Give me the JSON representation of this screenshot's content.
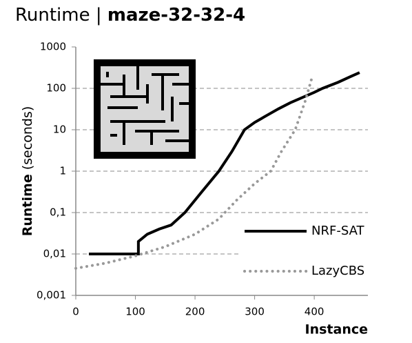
{
  "chart_data": {
    "type": "line",
    "title_left": "Runtime |",
    "title_right": "maze-32-32-4",
    "ylabel": "Runtime",
    "ylabel_unit": "(seconds)",
    "xlabel": "Instance",
    "xlim": [
      0,
      490
    ],
    "xticks": [
      0,
      100,
      200,
      300,
      400
    ],
    "ylim": [
      0.001,
      1000
    ],
    "log_y": true,
    "yticks": [
      {
        "value": 0.001,
        "label": "0,001"
      },
      {
        "value": 0.01,
        "label": "0,01"
      },
      {
        "value": 0.1,
        "label": "0,1"
      },
      1,
      10,
      100,
      1000
    ],
    "grid": true,
    "legend": "lower right",
    "series": [
      {
        "name": "NRF-SAT",
        "color": "#000000",
        "style": "solid",
        "x": [
          22,
          105,
          105,
          120,
          140,
          160,
          183,
          210,
          240,
          262,
          283,
          300,
          320,
          340,
          360,
          380,
          400,
          414,
          440,
          460,
          476
        ],
        "values": [
          0.01,
          0.01,
          0.02,
          0.03,
          0.04,
          0.05,
          0.1,
          0.3,
          1,
          3,
          10,
          15,
          22,
          32,
          45,
          60,
          80,
          100,
          140,
          190,
          240
        ]
      },
      {
        "name": "LazyCBS",
        "color": "#999999",
        "style": "dotted",
        "x": [
          0,
          50,
          100,
          150,
          200,
          240,
          270,
          300,
          327,
          345,
          368,
          385,
          397
        ],
        "values": [
          0.0045,
          0.006,
          0.009,
          0.015,
          0.03,
          0.07,
          0.2,
          0.5,
          1,
          3,
          10,
          50,
          200
        ]
      }
    ]
  }
}
